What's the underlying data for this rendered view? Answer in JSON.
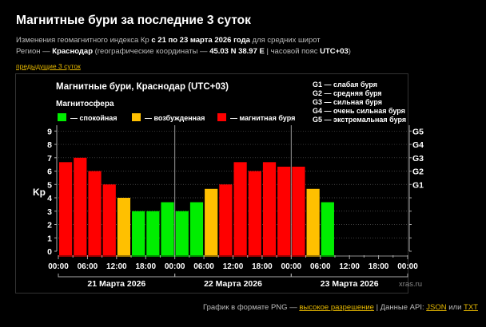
{
  "page": {
    "title": "Магнитные бури за последние 3 суток",
    "subtitle": {
      "pre": "Изменения геомагнитного индекса Кр ",
      "range": "с 21 по 23 марта 2026 года",
      "post": " для средних широт"
    },
    "region": {
      "pre": "Регион — ",
      "name": "Краснодар",
      "mid": " (географические координаты — ",
      "coords": "45.03 N 38.97 E",
      "mid2": " | часовой пояс ",
      "tz": "UTC+03",
      "post": ")"
    },
    "prev_link": "предыдущие 3 суток"
  },
  "chart_data": {
    "type": "bar",
    "title": "Магнитные бури, Краснодар (UTC+03)",
    "legend_title": "Магнитосфера",
    "legend": [
      {
        "label": "— спокойная",
        "color": "#00ee00"
      },
      {
        "label": "— возбужденная",
        "color": "#ffc000"
      },
      {
        "label": "— магнитная буря",
        "color": "#ff0000"
      }
    ],
    "g_legend": [
      "G1 — слабая буря",
      "G2 — средняя буря",
      "G3 — сильная буря",
      "G4 — очень сильная буря",
      "G5 — экстремальная буря"
    ],
    "ylabel": "Kp",
    "ylim": [
      0,
      9
    ],
    "yticks": [
      "0",
      "1",
      "2",
      "3",
      "4",
      "5",
      "6",
      "7",
      "8",
      "9"
    ],
    "g_ticks": [
      {
        "label": "G1",
        "kp": 5
      },
      {
        "label": "G2",
        "kp": 6
      },
      {
        "label": "G3",
        "kp": 7
      },
      {
        "label": "G4",
        "kp": 8
      },
      {
        "label": "G5",
        "kp": 9
      }
    ],
    "xticks": [
      "00:00",
      "06:00",
      "12:00",
      "18:00",
      "00:00",
      "06:00",
      "12:00",
      "18:00",
      "00:00",
      "06:00",
      "12:00",
      "18:00",
      "00:00"
    ],
    "days": [
      "21 Марта 2026",
      "22 Марта 2026",
      "23 Марта 2026"
    ],
    "interval_hours": 3,
    "values": [
      6.67,
      7,
      6,
      5,
      4,
      3,
      3,
      3.67,
      3,
      3.67,
      4.67,
      5,
      6.67,
      6,
      6.67,
      6.33,
      6.33,
      4.67,
      3.67
    ],
    "total_slots": 24,
    "grid": true,
    "watermark": "xras.ru"
  },
  "footer": {
    "pre": "График в формате PNG — ",
    "hires": "высокое разрешение",
    "sep": " | Данные API: ",
    "json": "JSON",
    "or": " или ",
    "txt": "TXT"
  }
}
